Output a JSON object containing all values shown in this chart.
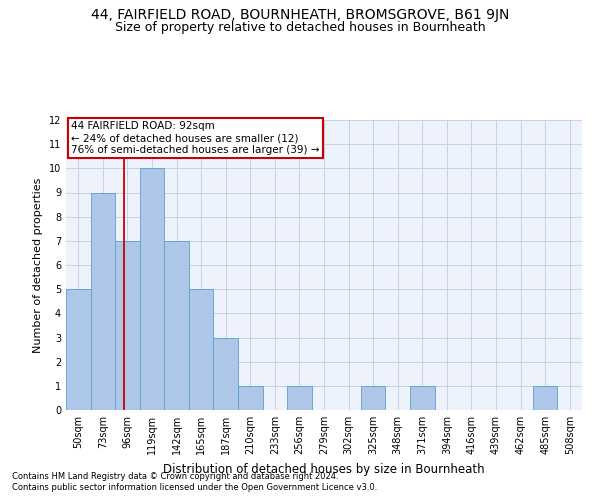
{
  "title": "44, FAIRFIELD ROAD, BOURNHEATH, BROMSGROVE, B61 9JN",
  "subtitle": "Size of property relative to detached houses in Bournheath",
  "xlabel": "Distribution of detached houses by size in Bournheath",
  "ylabel": "Number of detached properties",
  "footnote1": "Contains HM Land Registry data © Crown copyright and database right 2024.",
  "footnote2": "Contains public sector information licensed under the Open Government Licence v3.0.",
  "categories": [
    "50sqm",
    "73sqm",
    "96sqm",
    "119sqm",
    "142sqm",
    "165sqm",
    "187sqm",
    "210sqm",
    "233sqm",
    "256sqm",
    "279sqm",
    "302sqm",
    "325sqm",
    "348sqm",
    "371sqm",
    "394sqm",
    "416sqm",
    "439sqm",
    "462sqm",
    "485sqm",
    "508sqm"
  ],
  "values": [
    5,
    9,
    7,
    10,
    7,
    5,
    3,
    1,
    0,
    1,
    0,
    0,
    1,
    0,
    1,
    0,
    0,
    0,
    0,
    1,
    0
  ],
  "bar_color": "#aec6e8",
  "bar_edge_color": "#5a9fd4",
  "grid_color": "#c8d0e8",
  "annotation_text1": "44 FAIRFIELD ROAD: 92sqm",
  "annotation_text2": "← 24% of detached houses are smaller (12)",
  "annotation_text3": "76% of semi-detached houses are larger (39) →",
  "annotation_box_color": "#ffffff",
  "annotation_box_edge": "#cc0000",
  "red_line_color": "#cc0000",
  "red_line_x": 1.87,
  "ylim": [
    0,
    12
  ],
  "yticks": [
    0,
    1,
    2,
    3,
    4,
    5,
    6,
    7,
    8,
    9,
    10,
    11,
    12
  ],
  "background_color": "#eef2fa",
  "title_fontsize": 10,
  "subtitle_fontsize": 9,
  "ylabel_fontsize": 8,
  "xlabel_fontsize": 8.5,
  "tick_fontsize": 7,
  "annot_fontsize": 7.5,
  "footnote_fontsize": 6
}
